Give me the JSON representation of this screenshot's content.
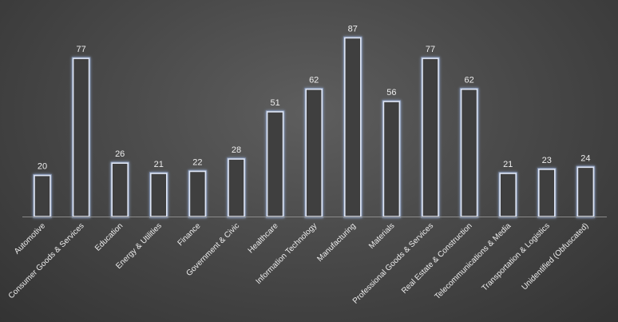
{
  "chart_data": {
    "type": "bar",
    "title": "",
    "xlabel": "",
    "ylabel": "",
    "ylim": [
      0,
      90
    ],
    "grid": false,
    "legend": "none",
    "categories": [
      "Automotive",
      "Consumer Goods & Services",
      "Education",
      "Energy & Utilities",
      "Finance",
      "Government & Civic",
      "Healthcare",
      "Information Technology",
      "Manufacturing",
      "Materials",
      "Professional Goods & Services",
      "Real Estate & Construction",
      "Telecommunications & Media",
      "Transportation & Logistics",
      "Unidentified (Obfuscated)"
    ],
    "values": [
      20,
      77,
      26,
      21,
      22,
      28,
      51,
      62,
      87,
      56,
      77,
      62,
      21,
      23,
      24
    ],
    "colors": {
      "background": "#4a4a4a",
      "bar_fill": "#3f3f3f",
      "bar_outline": "#dfe6f5",
      "bar_glow": "#8fa3c8",
      "text": "#eeeeee",
      "axis": "#8a8a8a"
    }
  }
}
